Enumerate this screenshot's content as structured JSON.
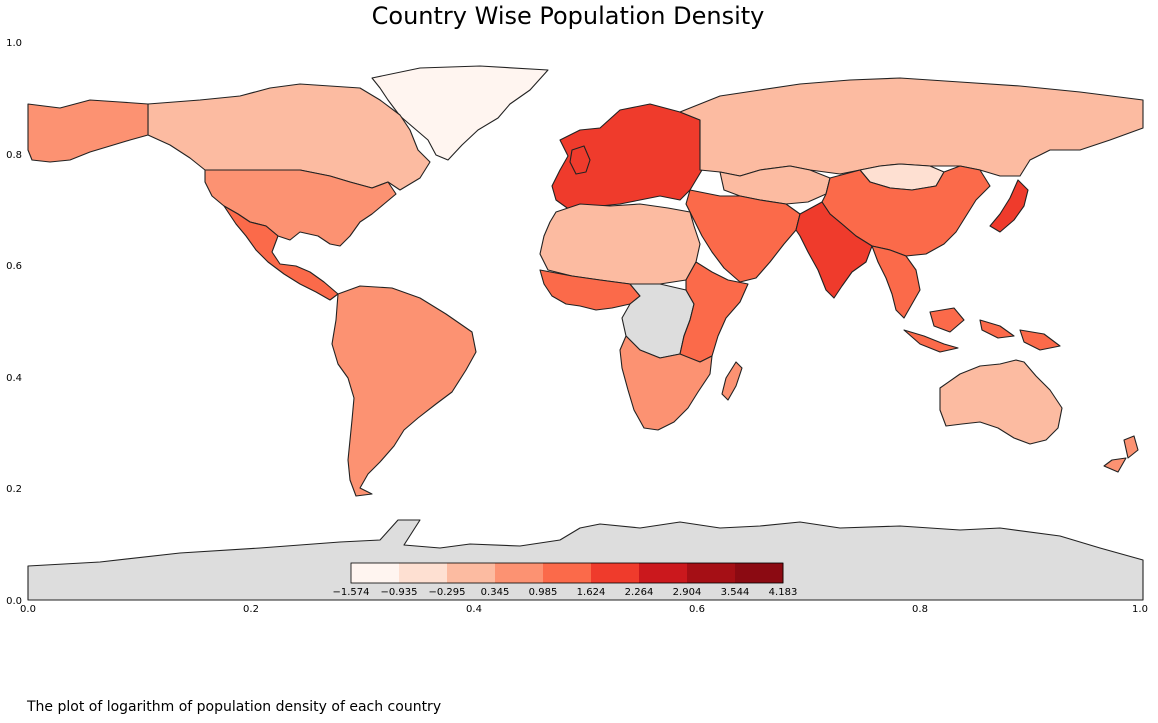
{
  "title": "Country Wise Population Density",
  "caption": "The plot of logarithm of population density of each country",
  "colors": {
    "no_data": "#dddddd",
    "border": "#222222",
    "colormap": [
      "#fff5f0",
      "#fee0d2",
      "#fcbba1",
      "#fc9272",
      "#fb6a4a",
      "#ef3b2c",
      "#cb181d",
      "#a50f15",
      "#8b0a12"
    ]
  },
  "chart_data": {
    "type": "choropleth",
    "title": "Country Wise Population Density",
    "x_ticks": [
      "0.0",
      "0.2",
      "0.4",
      "0.6",
      "0.8",
      "1.0"
    ],
    "y_ticks": [
      "0.0",
      "0.2",
      "0.4",
      "0.6",
      "0.8",
      "1.0"
    ],
    "xlim": [
      0,
      1
    ],
    "ylim": [
      0,
      1
    ],
    "colorbar": {
      "placement": "bottom-center",
      "tick_labels": [
        "−1.574",
        "−0.935",
        "−0.295",
        "0.345",
        "0.985",
        "1.624",
        "2.264",
        "2.904",
        "3.544",
        "4.183"
      ],
      "bins": 9
    },
    "regions": [
      {
        "region": "Greenland",
        "bin": 0
      },
      {
        "region": "Canada",
        "bin": 2
      },
      {
        "region": "Alaska",
        "bin": 3
      },
      {
        "region": "United States",
        "bin": 3
      },
      {
        "region": "Mexico & Central America",
        "bin": 4
      },
      {
        "region": "South America",
        "bin": 3
      },
      {
        "region": "Europe",
        "bin": 5
      },
      {
        "region": "Russia",
        "bin": 2
      },
      {
        "region": "Kazakhstan",
        "bin": 2
      },
      {
        "region": "Mongolia",
        "bin": 1
      },
      {
        "region": "China",
        "bin": 4
      },
      {
        "region": "India",
        "bin": 5
      },
      {
        "region": "Japan",
        "bin": 5
      },
      {
        "region": "Middle East",
        "bin": 4
      },
      {
        "region": "Southeast Asia",
        "bin": 4
      },
      {
        "region": "Indonesia",
        "bin": 4
      },
      {
        "region": "North Africa",
        "bin": 2
      },
      {
        "region": "West Africa",
        "bin": 4
      },
      {
        "region": "Central Africa",
        "bin": -1
      },
      {
        "region": "East Africa",
        "bin": 4
      },
      {
        "region": "Southern Africa",
        "bin": 3
      },
      {
        "region": "Madagascar",
        "bin": 3
      },
      {
        "region": "Australia",
        "bin": 2
      },
      {
        "region": "New Zealand",
        "bin": 3
      },
      {
        "region": "Antarctica",
        "bin": -1
      }
    ]
  }
}
